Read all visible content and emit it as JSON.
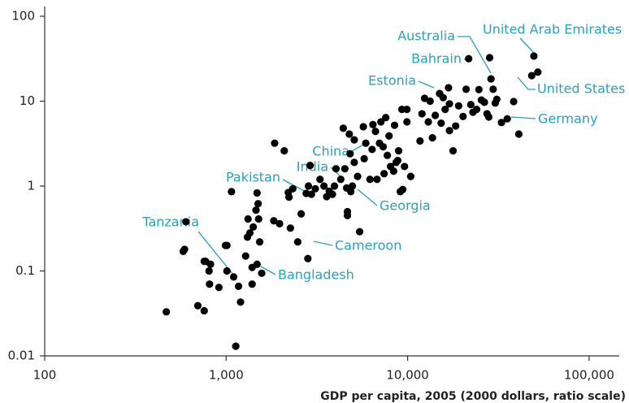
{
  "chart_data": {
    "type": "scatter",
    "x_label": "GDP per capita, 2005 (2000 dollars, ratio scale)",
    "log_x": true,
    "log_y": true,
    "color": "#000000",
    "annotation_color": "#2a9fbe",
    "xlim": [
      100,
      140000
    ],
    "ylim": [
      0.01,
      100
    ],
    "xticks": [
      100,
      {
        "value": 1000,
        "label": "1,000"
      },
      {
        "value": 10000,
        "label": "10,000"
      },
      {
        "value": 100000,
        "label": "100,000"
      }
    ],
    "yticks": [
      100,
      10,
      1,
      0.1,
      0.01
    ],
    "annotations": [
      "United Arab Emirates",
      "Australia",
      "Bahrain",
      "Estonia",
      "United States",
      "Germany",
      "China",
      "India",
      "Pakistan",
      "Georgia",
      "Cameroon",
      "Bangladesh",
      "Tanzania"
    ],
    "x": [
      468,
      580,
      590,
      600,
      698,
      757,
      757,
      770,
      805,
      810,
      820,
      912,
      991,
      1010,
      1010,
      1070,
      1100,
      1170,
      1200,
      1130,
      1280,
      1320,
      1310,
      1350,
      1390,
      1390,
      1410,
      1460,
      1510,
      1480,
      1530,
      1570,
      1480,
      1500,
      1830,
      1850,
      1970,
      2090,
      2200,
      2220,
      2260,
      2330,
      2480,
      2590,
      2760,
      2840,
      2820,
      2900,
      2950,
      3100,
      3290,
      3460,
      3580,
      3700,
      3850,
      3950,
      4030,
      4280,
      4420,
      4510,
      4610,
      4660,
      4660,
      4770,
      4820,
      4860,
      4960,
      5080,
      5080,
      5300,
      5440,
      5700,
      5760,
      5880,
      6200,
      6370,
      6440,
      6650,
      6780,
      7000,
      7120,
      7330,
      7420,
      7580,
      7730,
      7900,
      8050,
      8370,
      8470,
      8640,
      8820,
      8920,
      9110,
      9300,
      9400,
      9610,
      9910,
      9910,
      10400,
      11700,
      12000,
      12400,
      13000,
      13300,
      13700,
      14200,
      15000,
      15300,
      15700,
      16100,
      16800,
      17000,
      17000,
      17800,
      18400,
      19100,
      20200,
      21000,
      21700,
      22300,
      22900,
      24000,
      24700,
      25500,
      26500,
      27400,
      28000,
      28300,
      28800,
      29600,
      30400,
      31000,
      32900,
      35400,
      38400,
      48300,
      49600,
      52200,
      41000
    ],
    "values": [
      0.033,
      0.17,
      0.18,
      0.38,
      0.039,
      0.034,
      0.13,
      0.13,
      0.1,
      0.07,
      0.12,
      0.064,
      0.2,
      0.2,
      0.1,
      0.86,
      0.085,
      0.066,
      0.043,
      0.013,
      0.15,
      0.41,
      0.25,
      0.28,
      0.11,
      0.07,
      0.33,
      0.52,
      0.41,
      0.83,
      0.22,
      0.094,
      0.12,
      0.62,
      0.39,
      3.2,
      0.36,
      2.6,
      0.84,
      0.74,
      0.32,
      0.93,
      0.22,
      0.47,
      0.82,
      1.0,
      0.14,
      1.75,
      0.8,
      0.93,
      1.2,
      1.0,
      0.75,
      0.87,
      0.8,
      1.0,
      1.6,
      1.2,
      4.8,
      1.6,
      0.95,
      0.5,
      0.45,
      4.1,
      2.4,
      0.86,
      1.0,
      3.5,
      1.9,
      1.3,
      0.29,
      5.0,
      2.1,
      3.2,
      1.2,
      2.7,
      5.3,
      4.4,
      1.2,
      3.2,
      5.7,
      2.9,
      1.4,
      6.4,
      2.3,
      3.9,
      1.7,
      1.5,
      5.2,
      1.9,
      2.0,
      2.6,
      0.86,
      8.0,
      0.91,
      1.7,
      5.7,
      8.0,
      1.3,
      3.4,
      7.1,
      10.8,
      5.7,
      10,
      3.7,
      6.8,
      12.3,
      5.5,
      11,
      8,
      14.4,
      9.3,
      4.5,
      2.6,
      5.1,
      8.8,
      6.6,
      13.8,
      31.6,
      9.1,
      7.4,
      8,
      13.7,
      10.3,
      9.7,
      7.1,
      6.5,
      32.5,
      18.3,
      13.8,
      9.5,
      10.5,
      5.6,
      6.2,
      9.9,
      20,
      34,
      22,
      4.1
    ]
  }
}
